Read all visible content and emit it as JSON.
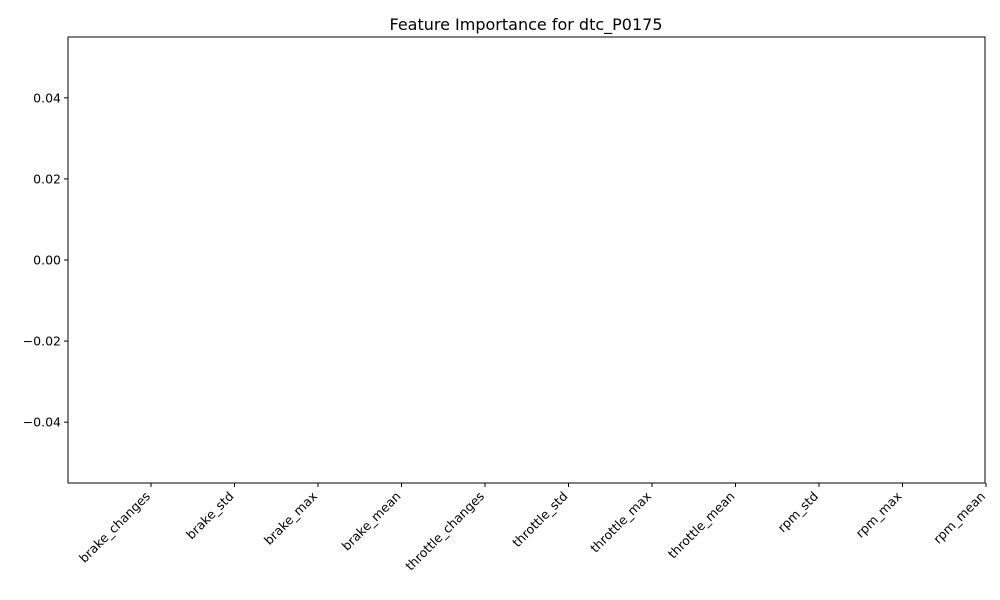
{
  "chart_data": {
    "type": "bar",
    "title": "Feature Importance for dtc_P0175",
    "xlabel": "",
    "ylabel": "",
    "categories": [
      "brake_changes",
      "brake_std",
      "brake_max",
      "brake_mean",
      "throttle_changes",
      "throttle_std",
      "throttle_max",
      "throttle_mean",
      "rpm_std",
      "rpm_max",
      "rpm_mean"
    ],
    "values": [
      0,
      0,
      0,
      0,
      0,
      0,
      0,
      0,
      0,
      0,
      0
    ],
    "ylim": [
      -0.055,
      0.055
    ],
    "yticks": [
      -0.04,
      -0.02,
      0.0,
      0.02,
      0.04
    ],
    "ytick_labels": [
      "−0.04",
      "−0.02",
      "0.00",
      "0.02",
      "0.04"
    ],
    "grid": false,
    "legend": "none"
  }
}
